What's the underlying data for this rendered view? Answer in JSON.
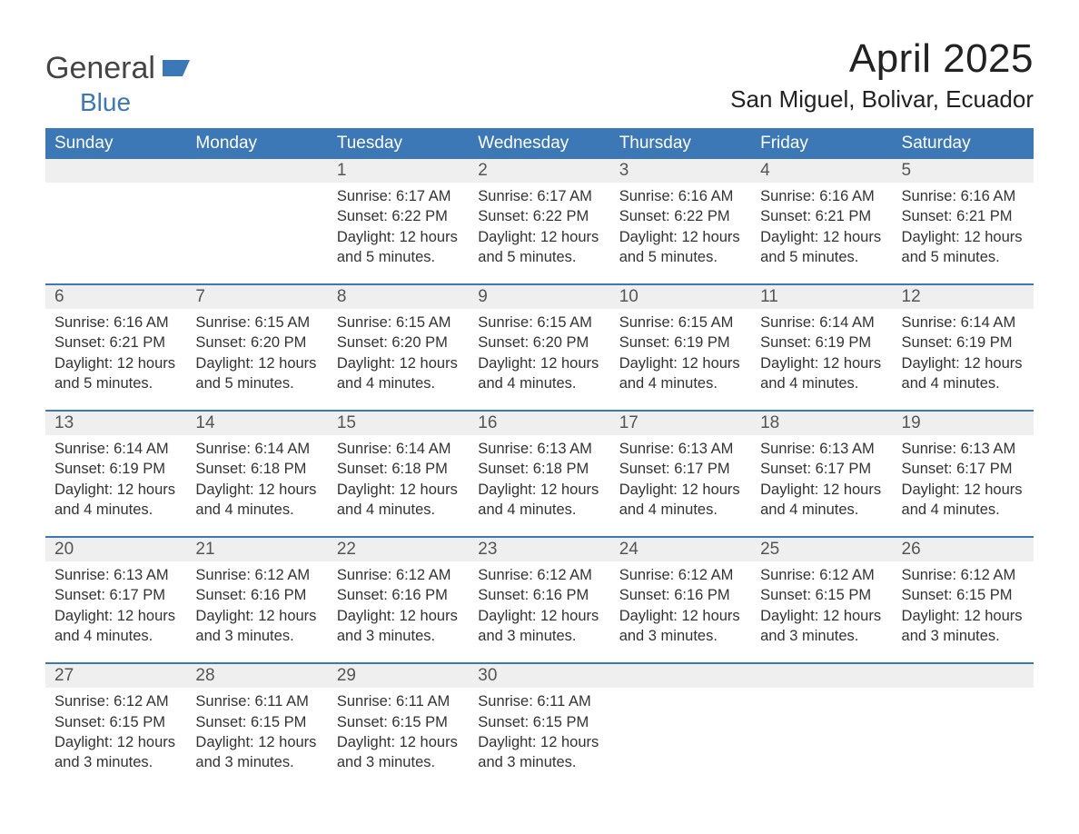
{
  "logo": {
    "word1": "General",
    "word2": "Blue"
  },
  "title": "April 2025",
  "location": "San Miguel, Bolivar, Ecuador",
  "colors": {
    "header_bg": "#3b78b5",
    "header_text": "#ffffff",
    "daynum_bg": "#efefef",
    "row_divider": "#3b78b5",
    "body_text": "#333333",
    "logo_gray": "#444444",
    "logo_blue": "#3b78b5",
    "page_bg": "#ffffff"
  },
  "fonts": {
    "title_size_pt": 33,
    "location_size_pt": 20,
    "header_size_pt": 14,
    "daynum_size_pt": 14,
    "body_size_pt": 12
  },
  "weekdays": [
    "Sunday",
    "Monday",
    "Tuesday",
    "Wednesday",
    "Thursday",
    "Friday",
    "Saturday"
  ],
  "weeks": [
    [
      null,
      null,
      {
        "n": "1",
        "sr": "Sunrise: 6:17 AM",
        "ss": "Sunset: 6:22 PM",
        "dl": "Daylight: 12 hours and 5 minutes."
      },
      {
        "n": "2",
        "sr": "Sunrise: 6:17 AM",
        "ss": "Sunset: 6:22 PM",
        "dl": "Daylight: 12 hours and 5 minutes."
      },
      {
        "n": "3",
        "sr": "Sunrise: 6:16 AM",
        "ss": "Sunset: 6:22 PM",
        "dl": "Daylight: 12 hours and 5 minutes."
      },
      {
        "n": "4",
        "sr": "Sunrise: 6:16 AM",
        "ss": "Sunset: 6:21 PM",
        "dl": "Daylight: 12 hours and 5 minutes."
      },
      {
        "n": "5",
        "sr": "Sunrise: 6:16 AM",
        "ss": "Sunset: 6:21 PM",
        "dl": "Daylight: 12 hours and 5 minutes."
      }
    ],
    [
      {
        "n": "6",
        "sr": "Sunrise: 6:16 AM",
        "ss": "Sunset: 6:21 PM",
        "dl": "Daylight: 12 hours and 5 minutes."
      },
      {
        "n": "7",
        "sr": "Sunrise: 6:15 AM",
        "ss": "Sunset: 6:20 PM",
        "dl": "Daylight: 12 hours and 5 minutes."
      },
      {
        "n": "8",
        "sr": "Sunrise: 6:15 AM",
        "ss": "Sunset: 6:20 PM",
        "dl": "Daylight: 12 hours and 4 minutes."
      },
      {
        "n": "9",
        "sr": "Sunrise: 6:15 AM",
        "ss": "Sunset: 6:20 PM",
        "dl": "Daylight: 12 hours and 4 minutes."
      },
      {
        "n": "10",
        "sr": "Sunrise: 6:15 AM",
        "ss": "Sunset: 6:19 PM",
        "dl": "Daylight: 12 hours and 4 minutes."
      },
      {
        "n": "11",
        "sr": "Sunrise: 6:14 AM",
        "ss": "Sunset: 6:19 PM",
        "dl": "Daylight: 12 hours and 4 minutes."
      },
      {
        "n": "12",
        "sr": "Sunrise: 6:14 AM",
        "ss": "Sunset: 6:19 PM",
        "dl": "Daylight: 12 hours and 4 minutes."
      }
    ],
    [
      {
        "n": "13",
        "sr": "Sunrise: 6:14 AM",
        "ss": "Sunset: 6:19 PM",
        "dl": "Daylight: 12 hours and 4 minutes."
      },
      {
        "n": "14",
        "sr": "Sunrise: 6:14 AM",
        "ss": "Sunset: 6:18 PM",
        "dl": "Daylight: 12 hours and 4 minutes."
      },
      {
        "n": "15",
        "sr": "Sunrise: 6:14 AM",
        "ss": "Sunset: 6:18 PM",
        "dl": "Daylight: 12 hours and 4 minutes."
      },
      {
        "n": "16",
        "sr": "Sunrise: 6:13 AM",
        "ss": "Sunset: 6:18 PM",
        "dl": "Daylight: 12 hours and 4 minutes."
      },
      {
        "n": "17",
        "sr": "Sunrise: 6:13 AM",
        "ss": "Sunset: 6:17 PM",
        "dl": "Daylight: 12 hours and 4 minutes."
      },
      {
        "n": "18",
        "sr": "Sunrise: 6:13 AM",
        "ss": "Sunset: 6:17 PM",
        "dl": "Daylight: 12 hours and 4 minutes."
      },
      {
        "n": "19",
        "sr": "Sunrise: 6:13 AM",
        "ss": "Sunset: 6:17 PM",
        "dl": "Daylight: 12 hours and 4 minutes."
      }
    ],
    [
      {
        "n": "20",
        "sr": "Sunrise: 6:13 AM",
        "ss": "Sunset: 6:17 PM",
        "dl": "Daylight: 12 hours and 4 minutes."
      },
      {
        "n": "21",
        "sr": "Sunrise: 6:12 AM",
        "ss": "Sunset: 6:16 PM",
        "dl": "Daylight: 12 hours and 3 minutes."
      },
      {
        "n": "22",
        "sr": "Sunrise: 6:12 AM",
        "ss": "Sunset: 6:16 PM",
        "dl": "Daylight: 12 hours and 3 minutes."
      },
      {
        "n": "23",
        "sr": "Sunrise: 6:12 AM",
        "ss": "Sunset: 6:16 PM",
        "dl": "Daylight: 12 hours and 3 minutes."
      },
      {
        "n": "24",
        "sr": "Sunrise: 6:12 AM",
        "ss": "Sunset: 6:16 PM",
        "dl": "Daylight: 12 hours and 3 minutes."
      },
      {
        "n": "25",
        "sr": "Sunrise: 6:12 AM",
        "ss": "Sunset: 6:15 PM",
        "dl": "Daylight: 12 hours and 3 minutes."
      },
      {
        "n": "26",
        "sr": "Sunrise: 6:12 AM",
        "ss": "Sunset: 6:15 PM",
        "dl": "Daylight: 12 hours and 3 minutes."
      }
    ],
    [
      {
        "n": "27",
        "sr": "Sunrise: 6:12 AM",
        "ss": "Sunset: 6:15 PM",
        "dl": "Daylight: 12 hours and 3 minutes."
      },
      {
        "n": "28",
        "sr": "Sunrise: 6:11 AM",
        "ss": "Sunset: 6:15 PM",
        "dl": "Daylight: 12 hours and 3 minutes."
      },
      {
        "n": "29",
        "sr": "Sunrise: 6:11 AM",
        "ss": "Sunset: 6:15 PM",
        "dl": "Daylight: 12 hours and 3 minutes."
      },
      {
        "n": "30",
        "sr": "Sunrise: 6:11 AM",
        "ss": "Sunset: 6:15 PM",
        "dl": "Daylight: 12 hours and 3 minutes."
      },
      null,
      null,
      null
    ]
  ]
}
